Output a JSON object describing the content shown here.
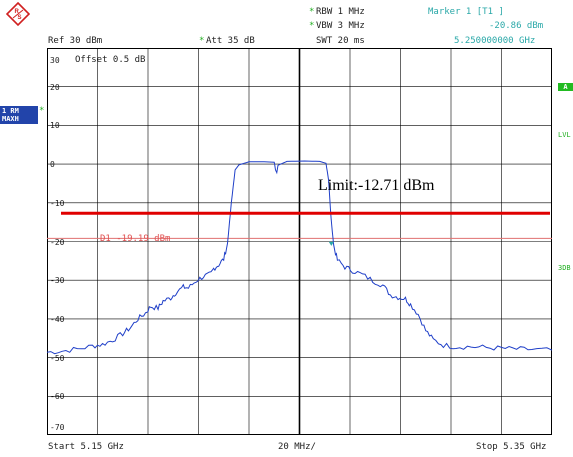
{
  "header": {
    "rbw_label": "RBW 1 MHz",
    "vbw_label": "VBW 3 MHz",
    "swt_label": "SWT 20 ms",
    "ref_label": "Ref  30 dBm",
    "att_label": "Att  35 dB",
    "offset_label": "Offset  0.5 dB",
    "marker_title": "Marker 1 [T1 ]",
    "marker_level": "-20.86 dBm",
    "marker_freq": "5.250000000 GHz",
    "star": "*"
  },
  "sidebar": {
    "trace_mode_top": "1 RM",
    "trace_mode_bottom": "MAXH",
    "right_a": "A",
    "right_lvl": "LVL",
    "right_3db": "3DB"
  },
  "axis": {
    "y_ticks": [
      "30",
      "20",
      "10",
      "0",
      "-10",
      "-20",
      "-30",
      "-40",
      "-50",
      "-60",
      "-70"
    ],
    "start_label": "Start  5.15 GHz",
    "span_label": "20 MHz/",
    "stop_label": "Stop  5.35 GHz"
  },
  "annotations": {
    "limit_text": "Limit:-12.71 dBm",
    "d1_label": "D1  -19.19 dBm"
  },
  "colors": {
    "trace": "#1f3fc8",
    "limit_line": "#e00000",
    "d1_line": "#e07070",
    "grid": "#000000"
  },
  "icons": {
    "logo": "rohde-schwarz-logo-icon"
  }
}
